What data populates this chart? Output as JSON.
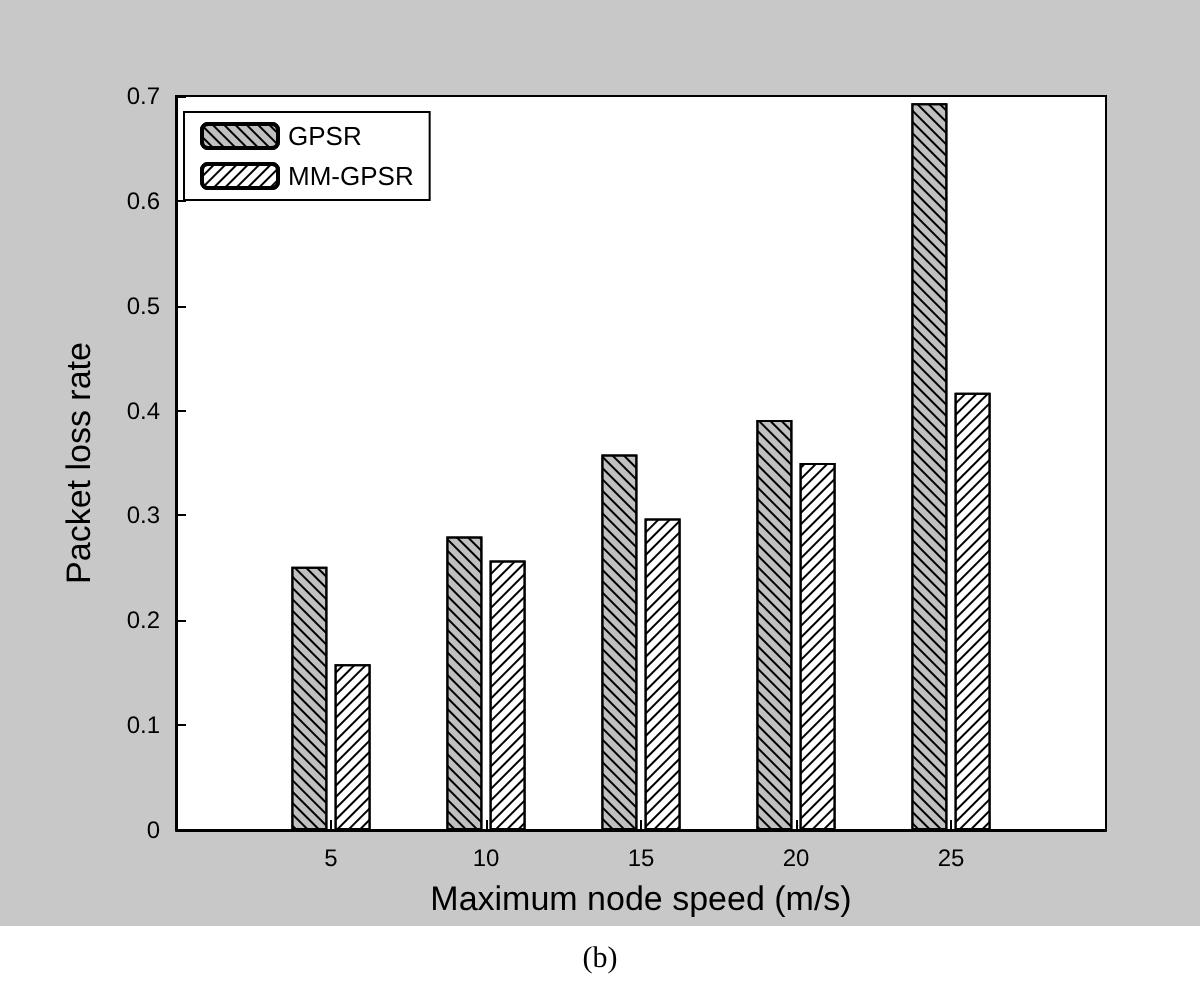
{
  "chart_data": {
    "type": "bar",
    "xlabel": "Maximum node speed (m/s)",
    "ylabel": "Packet loss rate",
    "annotations": [
      "(b)"
    ],
    "x": [
      5,
      10,
      15,
      20,
      25
    ],
    "xlim": [
      0,
      30
    ],
    "xticks": [
      5,
      10,
      15,
      20,
      25
    ],
    "ylim": [
      0,
      0.7
    ],
    "yticks": [
      0,
      0.1,
      0.2,
      0.3,
      0.4,
      0.5,
      0.6,
      0.7
    ],
    "series": [
      {
        "name": "GPSR",
        "color": "#c0c0c0",
        "values": [
          0.251,
          0.28,
          0.358,
          0.391,
          0.693
        ]
      },
      {
        "name": "MM-GPSR",
        "color": "#ffffff",
        "values": [
          0.158,
          0.257,
          0.297,
          0.35,
          0.417
        ]
      }
    ],
    "legend": "top left",
    "grid": false
  }
}
